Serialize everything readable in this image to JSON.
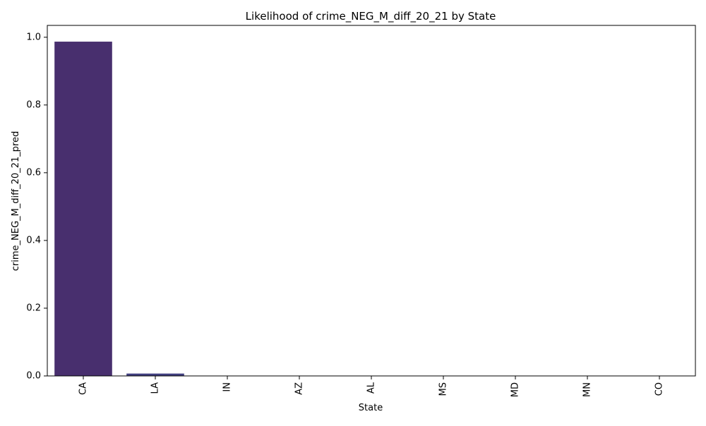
{
  "chart_data": {
    "type": "bar",
    "title": "Likelihood of crime_NEG_M_diff_20_21 by State",
    "xlabel": "State",
    "ylabel": "crime_NEG_M_diff_20_21_pred",
    "categories": [
      "CA",
      "LA",
      "IN",
      "AZ",
      "AL",
      "MS",
      "MD",
      "MN",
      "CO"
    ],
    "values": [
      0.987,
      0.007,
      0.001,
      0.0,
      0.0,
      0.0,
      0.0,
      0.0,
      0.0
    ],
    "colors": [
      "#482f6e",
      "#413f80",
      "#39508a",
      "#30628c",
      "#29728e",
      "#22828e",
      "#1e928c",
      "#25a186",
      "#35b179"
    ],
    "ylim": [
      0,
      1.035
    ],
    "yticks": [
      0.0,
      0.2,
      0.4,
      0.6,
      0.8,
      1.0
    ],
    "ytick_labels": [
      "0.0",
      "0.2",
      "0.4",
      "0.6",
      "0.8",
      "1.0"
    ],
    "grid": false,
    "legend": "none"
  }
}
